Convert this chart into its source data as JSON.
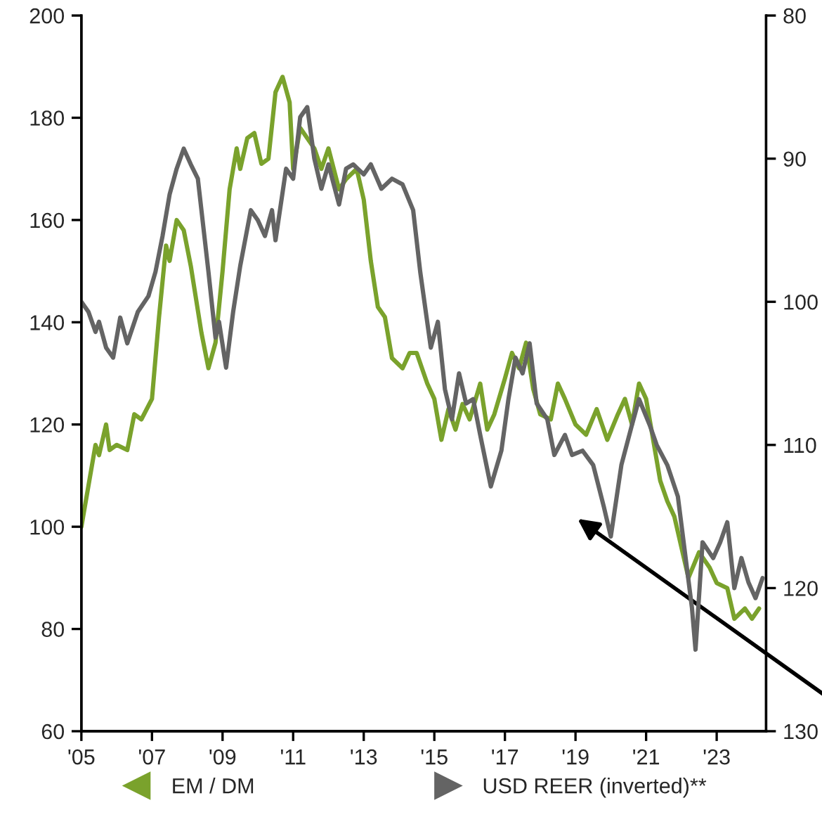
{
  "chart_data": {
    "type": "line",
    "xlim": [
      2005,
      2024.4
    ],
    "xticks": [
      {
        "value": 2005,
        "label": "'05"
      },
      {
        "value": 2007,
        "label": "'07"
      },
      {
        "value": 2009,
        "label": "'09"
      },
      {
        "value": 2011,
        "label": "'11"
      },
      {
        "value": 2013,
        "label": "'13"
      },
      {
        "value": 2015,
        "label": "'15"
      },
      {
        "value": 2017,
        "label": "'17"
      },
      {
        "value": 2019,
        "label": "'19"
      },
      {
        "value": 2021,
        "label": "'21"
      },
      {
        "value": 2023,
        "label": "'23"
      }
    ],
    "ylim": [
      60,
      200
    ],
    "yticks": [
      60,
      80,
      100,
      120,
      140,
      160,
      180,
      200
    ],
    "y2lim": [
      130,
      80
    ],
    "y2ticks": [
      80,
      90,
      100,
      110,
      120,
      130
    ],
    "grid": false,
    "legend": "bottom",
    "series": [
      {
        "name": "EM / DM",
        "color": "#7aa22c",
        "axis": "y",
        "x": [
          2005.0,
          2005.2,
          2005.4,
          2005.5,
          2005.7,
          2005.8,
          2006.0,
          2006.3,
          2006.5,
          2006.7,
          2007.0,
          2007.2,
          2007.4,
          2007.5,
          2007.7,
          2007.9,
          2008.1,
          2008.4,
          2008.6,
          2008.8,
          2009.0,
          2009.2,
          2009.4,
          2009.5,
          2009.7,
          2009.9,
          2010.1,
          2010.3,
          2010.5,
          2010.7,
          2010.9,
          2011.0,
          2011.2,
          2011.4,
          2011.6,
          2011.8,
          2012.0,
          2012.3,
          2012.5,
          2012.8,
          2013.0,
          2013.2,
          2013.4,
          2013.6,
          2013.8,
          2014.1,
          2014.3,
          2014.5,
          2014.8,
          2015.0,
          2015.2,
          2015.4,
          2015.6,
          2015.8,
          2016.0,
          2016.3,
          2016.5,
          2016.7,
          2017.0,
          2017.2,
          2017.4,
          2017.6,
          2017.8,
          2018.0,
          2018.3,
          2018.5,
          2018.7,
          2019.0,
          2019.3,
          2019.6,
          2019.9,
          2020.2,
          2020.4,
          2020.6,
          2020.8,
          2021.0,
          2021.2,
          2021.4,
          2021.6,
          2021.8,
          2022.0,
          2022.2,
          2022.5,
          2022.8,
          2023.0,
          2023.3,
          2023.5,
          2023.8,
          2024.0,
          2024.2
        ],
        "values": [
          100,
          108,
          116,
          114,
          120,
          115,
          116,
          115,
          122,
          121,
          125,
          141,
          155,
          152,
          160,
          158,
          151,
          138,
          131,
          136,
          150,
          166,
          174,
          170,
          176,
          177,
          171,
          172,
          185,
          188,
          183,
          170,
          178,
          176,
          174,
          170,
          174,
          166,
          168,
          170,
          164,
          152,
          143,
          141,
          133,
          131,
          134,
          134,
          128,
          125,
          117,
          123,
          119,
          124,
          121,
          128,
          119,
          122,
          129,
          134,
          131,
          136,
          127,
          122,
          121,
          128,
          125,
          120,
          118,
          123,
          117,
          122,
          125,
          120,
          128,
          125,
          117,
          109,
          105,
          102,
          96,
          90,
          95,
          92,
          89,
          88,
          82,
          84,
          82,
          84
        ]
      },
      {
        "name": "USD REER (inverted)**",
        "color": "#646464",
        "axis": "y2",
        "x": [
          2005.0,
          2005.2,
          2005.4,
          2005.5,
          2005.7,
          2005.9,
          2006.1,
          2006.3,
          2006.6,
          2006.9,
          2007.1,
          2007.3,
          2007.5,
          2007.7,
          2007.9,
          2008.1,
          2008.3,
          2008.6,
          2008.8,
          2008.9,
          2009.1,
          2009.3,
          2009.5,
          2009.8,
          2010.0,
          2010.2,
          2010.4,
          2010.5,
          2010.8,
          2011.0,
          2011.2,
          2011.4,
          2011.6,
          2011.8,
          2012.0,
          2012.3,
          2012.5,
          2012.7,
          2013.0,
          2013.2,
          2013.5,
          2013.8,
          2014.1,
          2014.4,
          2014.6,
          2014.9,
          2015.1,
          2015.3,
          2015.5,
          2015.7,
          2015.9,
          2016.1,
          2016.3,
          2016.6,
          2016.9,
          2017.1,
          2017.3,
          2017.5,
          2017.7,
          2017.9,
          2018.2,
          2018.4,
          2018.7,
          2018.9,
          2019.2,
          2019.5,
          2019.8,
          2020.0,
          2020.3,
          2020.6,
          2020.8,
          2021.1,
          2021.3,
          2021.6,
          2021.9,
          2022.1,
          2022.3,
          2022.4,
          2022.6,
          2022.9,
          2023.1,
          2023.3,
          2023.5,
          2023.7,
          2023.9,
          2024.1,
          2024.3
        ],
        "values": [
          100.0,
          100.7,
          102.1,
          101.4,
          103.2,
          103.9,
          101.1,
          102.9,
          100.7,
          99.6,
          97.9,
          95.4,
          92.5,
          90.7,
          89.3,
          90.4,
          91.4,
          97.9,
          102.5,
          101.4,
          104.6,
          100.7,
          97.5,
          93.6,
          94.3,
          95.4,
          93.6,
          95.7,
          90.7,
          91.4,
          87.1,
          86.4,
          90.0,
          92.1,
          90.4,
          93.2,
          90.7,
          90.4,
          91.1,
          90.4,
          92.1,
          91.4,
          91.8,
          93.6,
          97.9,
          103.2,
          101.4,
          106.1,
          108.2,
          105.0,
          107.1,
          106.8,
          109.3,
          112.9,
          110.4,
          106.8,
          103.9,
          105.0,
          102.9,
          107.1,
          108.2,
          110.7,
          109.3,
          110.7,
          110.4,
          111.4,
          114.3,
          116.4,
          111.4,
          108.6,
          106.8,
          108.6,
          110.0,
          111.4,
          113.6,
          117.5,
          121.4,
          124.3,
          116.8,
          117.9,
          116.8,
          115.4,
          120.0,
          117.9,
          119.6,
          120.7,
          119.3
        ]
      }
    ]
  }
}
